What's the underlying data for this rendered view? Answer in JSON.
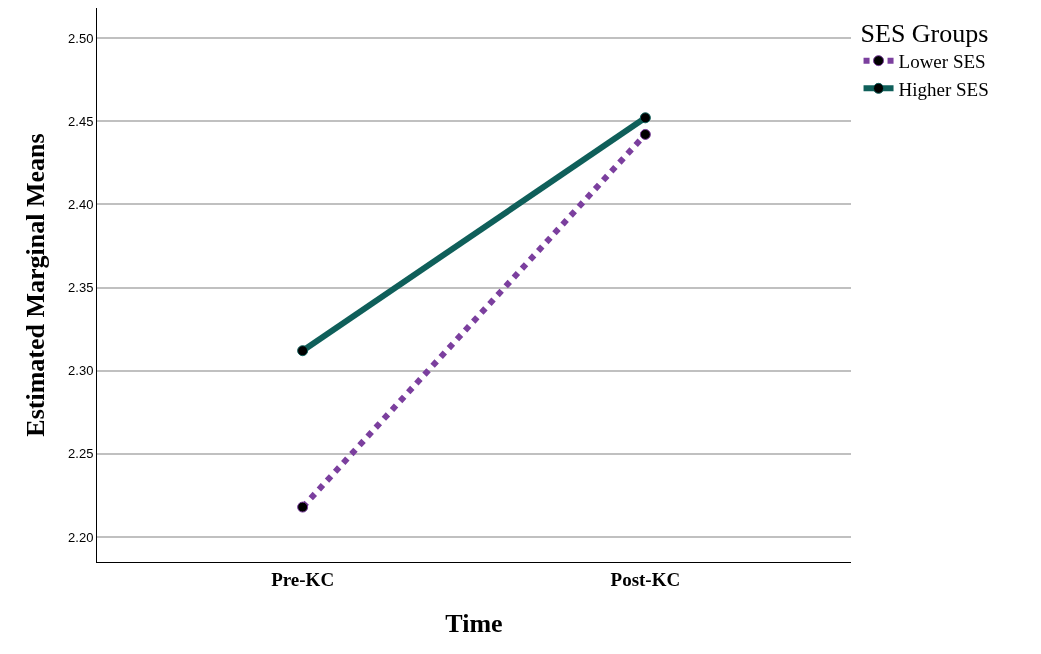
{
  "chart_data": {
    "type": "line",
    "xlabel": "Time",
    "ylabel": "Estimated Marginal Means",
    "legend_title": "SES Groups",
    "categories": [
      "Pre-KC",
      "Post-KC"
    ],
    "series": [
      {
        "name": "Lower SES",
        "color": "#7b3f9e",
        "values": [
          2.218,
          2.442
        ],
        "line_style": "dotted"
      },
      {
        "name": "Higher SES",
        "color": "#0f5f5a",
        "values": [
          2.312,
          2.452
        ],
        "line_style": "solid"
      }
    ],
    "ylim": [
      2.185,
      2.518
    ],
    "yticks": [
      {
        "value": 2.2,
        "label": "2.20"
      },
      {
        "value": 2.25,
        "label": "2.25"
      },
      {
        "value": 2.3,
        "label": "2.30"
      },
      {
        "value": 2.35,
        "label": "2.35"
      },
      {
        "value": 2.4,
        "label": "2.40"
      },
      {
        "value": 2.45,
        "label": "2.45"
      },
      {
        "value": 2.5,
        "label": "2.50"
      }
    ],
    "grid": "y",
    "legend": "top right",
    "marker": "circle"
  }
}
